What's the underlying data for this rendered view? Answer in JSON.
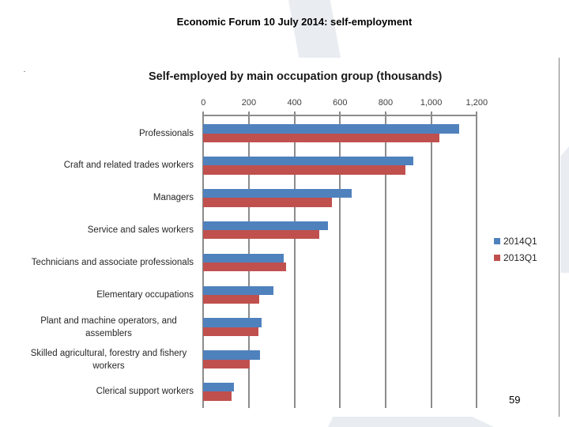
{
  "slide": {
    "title": "Economic Forum 10 July 2014: self-employment",
    "page_number": "59"
  },
  "chart_data": {
    "type": "bar",
    "orientation": "horizontal",
    "title": "Self-employed by main occupation group (thousands)",
    "xlabel": "",
    "ylabel": "",
    "xlim": [
      0,
      1200
    ],
    "x_ticks": [
      "0",
      "200",
      "400",
      "600",
      "800",
      "1,000",
      "1,200"
    ],
    "grid": true,
    "legend_position": "right",
    "categories": [
      "Professionals",
      "Craft and related trades workers",
      "Managers",
      "Service and sales workers",
      "Technicians and associate professionals",
      "Elementary occupations",
      "Plant and machine operators, and assemblers",
      "Skilled agricultural, forestry and fishery workers",
      "Clerical support workers"
    ],
    "series": [
      {
        "name": "2014Q1",
        "color": "#4f81bd",
        "values": [
          1122,
          920,
          652,
          548,
          354,
          309,
          257,
          249,
          133
        ]
      },
      {
        "name": "2013Q1",
        "color": "#c0504d",
        "values": [
          1035,
          886,
          565,
          508,
          362,
          246,
          241,
          203,
          124
        ]
      }
    ]
  }
}
